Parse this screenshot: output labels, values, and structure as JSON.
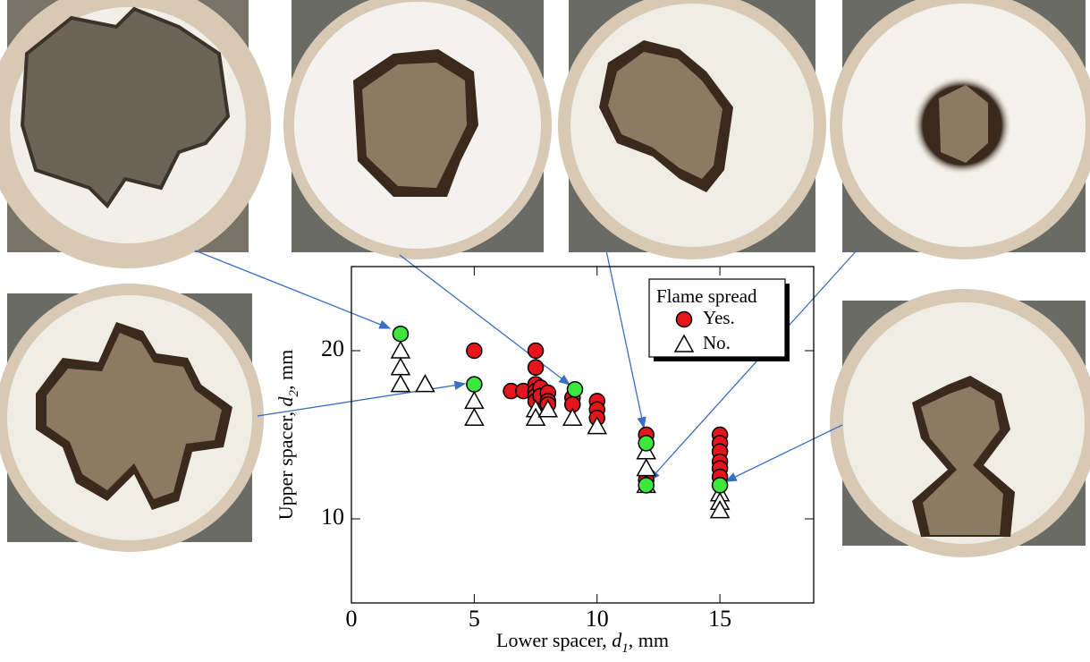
{
  "chart_data": {
    "type": "scatter",
    "x_label": [
      "Lower spacer, ",
      "d",
      "1",
      ", mm"
    ],
    "y_label": [
      "Upper spacer, ",
      "d",
      "2",
      ", mm"
    ],
    "legend_title": "Flame spread",
    "xlim": [
      0,
      19
    ],
    "xticks": [
      0,
      5,
      10,
      15
    ],
    "ylim": [
      5,
      25
    ],
    "yticks": [
      10,
      20
    ],
    "series": [
      {
        "name": "Yes.",
        "color": "#e8141c",
        "marker": "circle",
        "x": [
          5,
          6.5,
          7,
          7.5,
          7.5,
          7.5,
          7.5,
          7.5,
          7.5,
          7.7,
          7.7,
          8,
          8,
          8,
          9,
          9,
          10,
          10,
          10,
          12,
          12,
          15,
          15,
          15,
          15,
          15,
          15
        ],
        "values": [
          20,
          17.6,
          17.6,
          20,
          19,
          18,
          17.6,
          17.3,
          17,
          17.8,
          17.3,
          17.5,
          17,
          16.8,
          17.2,
          16.8,
          17,
          16.5,
          16,
          15,
          12.3,
          15,
          14.5,
          14,
          13.4,
          13,
          12.5
        ]
      },
      {
        "name": "No.",
        "color": "#ffffff",
        "marker": "triangle",
        "x": [
          2,
          2,
          2,
          3,
          5,
          5,
          7.5,
          7.5,
          8,
          9,
          10,
          12,
          12,
          12,
          15,
          15,
          15
        ],
        "values": [
          20,
          19,
          18,
          18,
          17,
          16,
          16.5,
          16,
          16.5,
          16,
          15.5,
          14,
          13,
          12,
          11.5,
          11,
          10.5
        ]
      },
      {
        "color": "#3be83b",
        "marker": "circle",
        "x": [
          2,
          5,
          9.1,
          12,
          12,
          15
        ],
        "values": [
          21,
          18,
          17.7,
          14.5,
          12,
          12
        ]
      }
    ]
  }
}
